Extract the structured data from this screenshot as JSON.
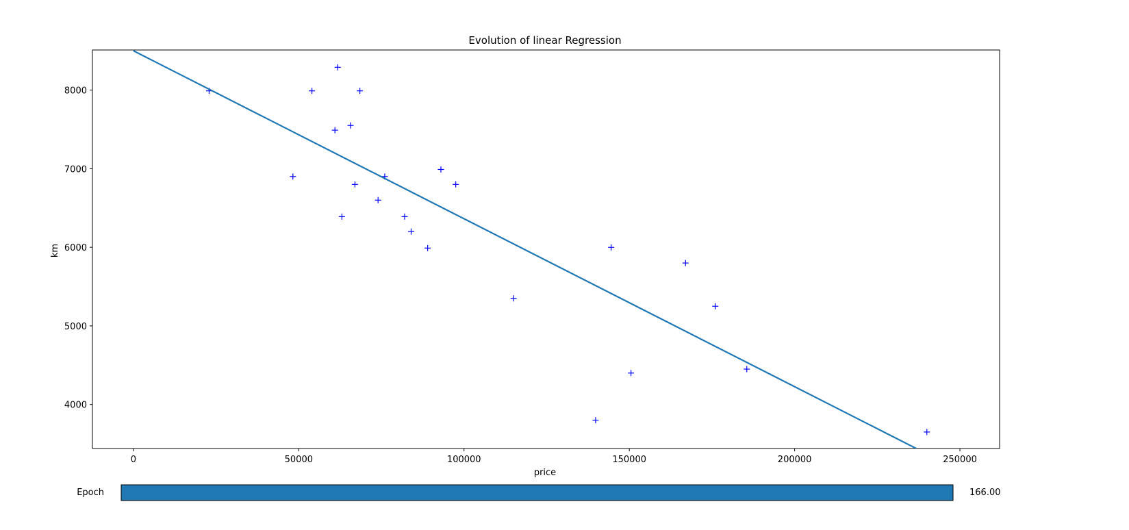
{
  "chart_data": {
    "type": "scatter",
    "title": "Evolution of linear Regression",
    "xlabel": "price",
    "ylabel": "km",
    "xlim": [
      -12400,
      262000
    ],
    "ylim": [
      3440,
      8510
    ],
    "xticks": [
      0,
      50000,
      100000,
      150000,
      200000,
      250000
    ],
    "xtick_labels": [
      "0",
      "50000",
      "100000",
      "150000",
      "200000",
      "250000"
    ],
    "yticks": [
      4000,
      5000,
      6000,
      7000,
      8000
    ],
    "ytick_labels": [
      "4000",
      "5000",
      "6000",
      "7000",
      "8000"
    ],
    "grid": false,
    "series": [
      {
        "kind": "scatter",
        "marker": "+",
        "color": "#0000ff",
        "points": [
          {
            "x": 22899,
            "y": 7990
          },
          {
            "x": 48235,
            "y": 6900
          },
          {
            "x": 54000,
            "y": 7990
          },
          {
            "x": 61789,
            "y": 8290
          },
          {
            "x": 60949,
            "y": 7490
          },
          {
            "x": 63060,
            "y": 6390
          },
          {
            "x": 65674,
            "y": 7550
          },
          {
            "x": 67000,
            "y": 6800
          },
          {
            "x": 68500,
            "y": 7990
          },
          {
            "x": 74000,
            "y": 6600
          },
          {
            "x": 76025,
            "y": 6900
          },
          {
            "x": 82029,
            "y": 6390
          },
          {
            "x": 84000,
            "y": 6200
          },
          {
            "x": 89000,
            "y": 5990
          },
          {
            "x": 93000,
            "y": 6990
          },
          {
            "x": 97500,
            "y": 6800
          },
          {
            "x": 115000,
            "y": 5350
          },
          {
            "x": 139800,
            "y": 3800
          },
          {
            "x": 144500,
            "y": 5999
          },
          {
            "x": 150500,
            "y": 4400
          },
          {
            "x": 167000,
            "y": 5800
          },
          {
            "x": 176000,
            "y": 5250
          },
          {
            "x": 185530,
            "y": 4450
          },
          {
            "x": 240000,
            "y": 3650
          }
        ]
      },
      {
        "kind": "line",
        "color": "#1f77b4",
        "points": [
          {
            "x": 0,
            "y": 8500
          },
          {
            "x": 236800,
            "y": 3440
          }
        ]
      }
    ]
  },
  "slider": {
    "label": "Epoch",
    "value_text": "166.00",
    "fill_fraction": 1.0,
    "color": "#1f77b4"
  }
}
